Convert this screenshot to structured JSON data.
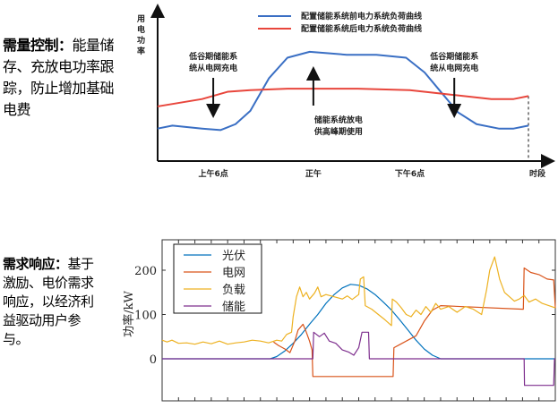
{
  "sections": [
    {
      "title": "需量控制：",
      "body": "能量储存、充放电功率跟踪，防止增加基础电费"
    },
    {
      "title": "需求响应：",
      "body": "基于激励、电价需求响应，以经济利益驱动用户参与。"
    }
  ],
  "chart_data": [
    {
      "type": "line",
      "title": "",
      "ylabel": "用电功率",
      "xlabel": "时段",
      "x_ticks": [
        {
          "label": "上午6点",
          "x": 15
        },
        {
          "label": "正午",
          "x": 42
        },
        {
          "label": "下午6点",
          "x": 68
        }
      ],
      "xlim": [
        0,
        100
      ],
      "ylim": [
        0,
        100
      ],
      "legend_position": "top-right",
      "series": [
        {
          "name": "配置储能系统前电力系统负荷曲线",
          "color": "#3a6fc4",
          "points": [
            [
              0,
              22
            ],
            [
              4,
              24
            ],
            [
              12,
              22
            ],
            [
              17,
              21
            ],
            [
              21,
              25
            ],
            [
              25,
              34
            ],
            [
              30,
              56
            ],
            [
              35,
              70
            ],
            [
              41,
              74
            ],
            [
              46,
              73
            ],
            [
              51,
              72
            ],
            [
              59,
              72
            ],
            [
              67,
              70
            ],
            [
              72,
              60
            ],
            [
              76,
              48
            ],
            [
              81,
              33
            ],
            [
              86,
              25
            ],
            [
              92,
              22
            ],
            [
              96,
              22
            ],
            [
              100,
              24
            ]
          ]
        },
        {
          "name": "配置储能系统后电力系统负荷曲线",
          "color": "#e8463c",
          "points": [
            [
              0,
              37
            ],
            [
              12,
              42
            ],
            [
              19,
              47
            ],
            [
              25,
              48
            ],
            [
              35,
              49
            ],
            [
              54,
              49
            ],
            [
              68,
              48
            ],
            [
              79,
              45
            ],
            [
              90,
              42
            ],
            [
              96,
              42
            ],
            [
              100,
              44
            ]
          ]
        }
      ],
      "annotations": [
        {
          "text": [
            "低谷期储能系",
            "统从电网充电"
          ],
          "arrow": "down",
          "x": 15
        },
        {
          "text": [
            "储能系统放电",
            "供高峰期使用"
          ],
          "arrow": "up",
          "x": 42
        },
        {
          "text": [
            "低谷期储能系",
            "统从电网充电"
          ],
          "arrow": "down",
          "x": 80
        }
      ]
    },
    {
      "type": "line",
      "title": "",
      "ylabel": "功率/kW",
      "xlabel": "",
      "xlim": [
        0,
        24
      ],
      "ylim": [
        -90,
        275
      ],
      "y_ticks": [
        0,
        100,
        200
      ],
      "legend_position": "top-left",
      "series": [
        {
          "name": "光伏",
          "color": "#0072bd",
          "points": [
            [
              0,
              0
            ],
            [
              6.6,
              0
            ],
            [
              7,
              5
            ],
            [
              7.5,
              18
            ],
            [
              8,
              35
            ],
            [
              8.5,
              55
            ],
            [
              9,
              78
            ],
            [
              9.5,
              100
            ],
            [
              10,
              125
            ],
            [
              10.5,
              145
            ],
            [
              11,
              160
            ],
            [
              11.5,
              168
            ],
            [
              12,
              166
            ],
            [
              12.5,
              158
            ],
            [
              13,
              145
            ],
            [
              13.5,
              128
            ],
            [
              14,
              110
            ],
            [
              14.5,
              88
            ],
            [
              15,
              65
            ],
            [
              15.5,
              42
            ],
            [
              16,
              22
            ],
            [
              16.5,
              8
            ],
            [
              17,
              0
            ],
            [
              24,
              0
            ]
          ]
        },
        {
          "name": "电网",
          "color": "#d95319",
          "points": [
            [
              6.8,
              38
            ],
            [
              7.1,
              30
            ],
            [
              7.5,
              22
            ],
            [
              7.8,
              14
            ],
            [
              8.1,
              40
            ],
            [
              8.3,
              65
            ],
            [
              8.6,
              78
            ],
            [
              8.8,
              60
            ],
            [
              9,
              40
            ],
            [
              9.15,
              20
            ],
            [
              9.2,
              -40
            ],
            [
              14.1,
              -40
            ],
            [
              14.15,
              25
            ],
            [
              14.5,
              32
            ],
            [
              15,
              42
            ],
            [
              15.5,
              52
            ],
            [
              16,
              85
            ],
            [
              16.5,
              110
            ],
            [
              17,
              120
            ],
            [
              22.05,
              112
            ],
            [
              22.1,
              205
            ],
            [
              22.5,
              195
            ],
            [
              23,
              190
            ],
            [
              23.5,
              180
            ],
            [
              23.9,
              178
            ],
            [
              24,
              115
            ]
          ]
        },
        {
          "name": "负载",
          "color": "#edb120",
          "points": [
            [
              0,
              42
            ],
            [
              0.3,
              38
            ],
            [
              0.6,
              42
            ],
            [
              1,
              35
            ],
            [
              1.5,
              36
            ],
            [
              2,
              33
            ],
            [
              2.5,
              38
            ],
            [
              3,
              34
            ],
            [
              3.5,
              40
            ],
            [
              4,
              33
            ],
            [
              4.5,
              36
            ],
            [
              5,
              38
            ],
            [
              5.5,
              42
            ],
            [
              6,
              40
            ],
            [
              6.5,
              36
            ],
            [
              7,
              42
            ],
            [
              7.3,
              40
            ],
            [
              7.6,
              55
            ],
            [
              7.9,
              60
            ],
            [
              8,
              95
            ],
            [
              8.2,
              140
            ],
            [
              8.4,
              162
            ],
            [
              8.6,
              140
            ],
            [
              8.8,
              150
            ],
            [
              9,
              135
            ],
            [
              9.3,
              148
            ],
            [
              9.5,
              162
            ],
            [
              9.7,
              140
            ],
            [
              10,
              145
            ],
            [
              10.5,
              140
            ],
            [
              11,
              135
            ],
            [
              11.3,
              142
            ],
            [
              11.6,
              134
            ],
            [
              12,
              145
            ],
            [
              12.1,
              180
            ],
            [
              12.3,
              185
            ],
            [
              12.4,
              120
            ],
            [
              12.8,
              112
            ],
            [
              13.2,
              100
            ],
            [
              13.6,
              88
            ],
            [
              14,
              75
            ],
            [
              14.05,
              135
            ],
            [
              14.3,
              128
            ],
            [
              14.6,
              115
            ],
            [
              14.9,
              100
            ],
            [
              15.2,
              95
            ],
            [
              15.5,
              110
            ],
            [
              15.8,
              100
            ],
            [
              16.1,
              118
            ],
            [
              16.4,
              105
            ],
            [
              16.7,
              125
            ],
            [
              17,
              112
            ],
            [
              17.5,
              118
            ],
            [
              18,
              105
            ],
            [
              18.5,
              118
            ],
            [
              19,
              112
            ],
            [
              19.5,
              100
            ],
            [
              19.8,
              155
            ],
            [
              20,
              200
            ],
            [
              20.3,
              230
            ],
            [
              20.6,
              180
            ],
            [
              20.9,
              150
            ],
            [
              21.2,
              140
            ],
            [
              21.5,
              130
            ],
            [
              21.8,
              135
            ],
            [
              22.1,
              143
            ],
            [
              22.4,
              128
            ],
            [
              22.8,
              135
            ],
            [
              23.2,
              125
            ],
            [
              23.6,
              120
            ],
            [
              24,
              115
            ]
          ]
        },
        {
          "name": "储能",
          "color": "#7e2f8e",
          "points": [
            [
              0,
              0
            ],
            [
              9.2,
              0
            ],
            [
              9.25,
              60
            ],
            [
              9.6,
              50
            ],
            [
              9.9,
              58
            ],
            [
              10.2,
              40
            ],
            [
              10.6,
              35
            ],
            [
              11,
              20
            ],
            [
              11.4,
              15
            ],
            [
              11.7,
              8
            ],
            [
              12,
              25
            ],
            [
              12.2,
              60
            ],
            [
              12.6,
              60
            ],
            [
              12.65,
              0
            ],
            [
              22.1,
              0
            ],
            [
              22.12,
              -60
            ],
            [
              23.9,
              -60
            ],
            [
              23.95,
              0
            ],
            [
              24,
              0
            ]
          ]
        }
      ]
    }
  ]
}
